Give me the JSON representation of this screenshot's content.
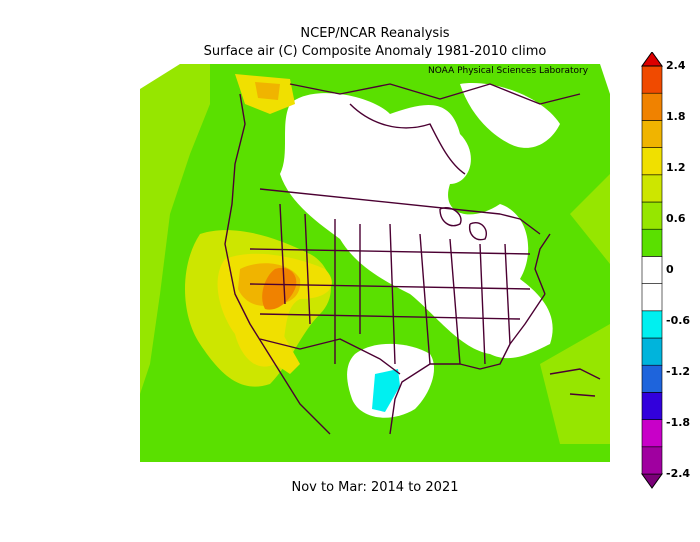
{
  "title_line1": "NCEP/NCAR Reanalysis",
  "title_line2": "Surface air (C) Composite Anomaly 1981-2010 climo",
  "credit": "NOAA Physical Sciences Laboratory",
  "footer": "Nov to Mar: 2014 to 2021",
  "colorbar": {
    "labels": [
      "2.4",
      "1.8",
      "1.2",
      "0.6",
      "0",
      "-0.6",
      "-1.2",
      "-1.8",
      "-2.4"
    ],
    "colors": [
      "#7a0078",
      "#a000a0",
      "#c800c8",
      "#3200dc",
      "#1e64dc",
      "#00b4dc",
      "#00f0f0",
      "#ffffff",
      "#ffffff",
      "#5ae000",
      "#96e600",
      "#cde600",
      "#f0e000",
      "#f0b400",
      "#f08200",
      "#f04a00",
      "#dc0000"
    ]
  }
}
